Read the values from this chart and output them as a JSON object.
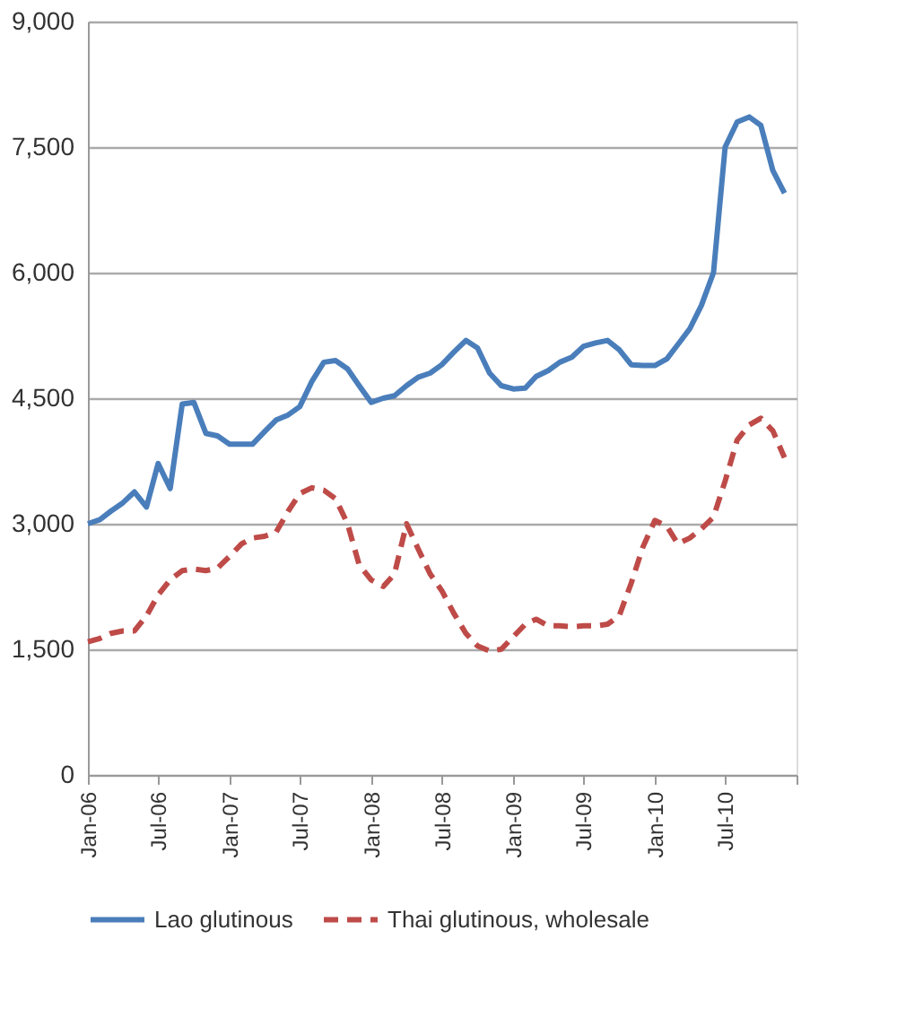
{
  "chart_data": {
    "type": "line",
    "x": [
      "2006-01",
      "2006-02",
      "2006-03",
      "2006-04",
      "2006-05",
      "2006-06",
      "2006-07",
      "2006-08",
      "2006-09",
      "2006-10",
      "2006-11",
      "2006-12",
      "2007-01",
      "2007-02",
      "2007-03",
      "2007-04",
      "2007-05",
      "2007-06",
      "2007-07",
      "2007-08",
      "2007-09",
      "2007-10",
      "2007-11",
      "2007-12",
      "2008-01",
      "2008-02",
      "2008-03",
      "2008-04",
      "2008-05",
      "2008-06",
      "2008-07",
      "2008-08",
      "2008-09",
      "2008-10",
      "2008-11",
      "2008-12",
      "2009-01",
      "2009-02",
      "2009-03",
      "2009-04",
      "2009-05",
      "2009-06",
      "2009-07",
      "2009-08",
      "2009-09",
      "2009-10",
      "2009-11",
      "2009-12",
      "2010-01",
      "2010-02",
      "2010-03",
      "2010-04",
      "2010-05",
      "2010-06",
      "2010-07",
      "2010-08",
      "2010-09",
      "2010-10",
      "2010-11",
      "2010-12"
    ],
    "series": [
      {
        "name": "Lao glutinous",
        "color": "#4a7ebb",
        "line_style": "solid",
        "values": [
          3000,
          3050,
          3150,
          3250,
          3380,
          3200,
          3720,
          3420,
          4430,
          4450,
          4080,
          4050,
          3950,
          3950,
          3950,
          4100,
          4240,
          4300,
          4400,
          4700,
          4930,
          4950,
          4850,
          4650,
          4450,
          4500,
          4530,
          4650,
          4750,
          4800,
          4900,
          5050,
          5190,
          5100,
          4800,
          4650,
          4610,
          4620,
          4760,
          4830,
          4930,
          4990,
          5120,
          5160,
          5190,
          5080,
          4900,
          4890,
          4890,
          4970,
          5140,
          5330,
          5610,
          6000,
          7500,
          7800,
          7860,
          7760,
          7220,
          6950
        ]
      },
      {
        "name": "Thai glutinous, wholesale",
        "color": "#be4b48",
        "line_style": "dashed",
        "values": [
          1590,
          1630,
          1690,
          1720,
          1720,
          1900,
          2150,
          2330,
          2440,
          2460,
          2440,
          2470,
          2610,
          2760,
          2830,
          2850,
          2900,
          3150,
          3360,
          3430,
          3400,
          3300,
          3000,
          2510,
          2330,
          2250,
          2400,
          3000,
          2700,
          2400,
          2200,
          1930,
          1690,
          1540,
          1480,
          1500,
          1650,
          1800,
          1860,
          1780,
          1780,
          1770,
          1780,
          1780,
          1800,
          1900,
          2290,
          2720,
          3040,
          2970,
          2760,
          2830,
          2940,
          3080,
          3510,
          4000,
          4180,
          4260,
          4110,
          3790
        ]
      }
    ],
    "xlim": [
      "2006-01",
      "2011-01"
    ],
    "xticks": [
      {
        "value": "2006-01",
        "label": "Jan-06"
      },
      {
        "value": "2006-07",
        "label": "Jul-06"
      },
      {
        "value": "2007-01",
        "label": "Jan-07"
      },
      {
        "value": "2007-07",
        "label": "Jul-07"
      },
      {
        "value": "2008-01",
        "label": "Jan-08"
      },
      {
        "value": "2008-07",
        "label": "Jul-08"
      },
      {
        "value": "2009-01",
        "label": "Jan-09"
      },
      {
        "value": "2009-07",
        "label": "Jul-09"
      },
      {
        "value": "2010-01",
        "label": "Jan-10"
      },
      {
        "value": "2010-07",
        "label": "Jul-10"
      },
      {
        "value": "2011-01",
        "label": null
      }
    ],
    "ylim": [
      0,
      9000
    ],
    "yticks": [
      0,
      {
        "value": 1500,
        "label": "1,500"
      },
      {
        "value": 3000,
        "label": "3,000"
      },
      {
        "value": 4500,
        "label": "4,500"
      },
      {
        "value": 6000,
        "label": "6,000"
      },
      {
        "value": 7500,
        "label": "7,500"
      },
      {
        "value": 9000,
        "label": "9,000"
      }
    ],
    "grid": "y",
    "legend": "bottom"
  }
}
